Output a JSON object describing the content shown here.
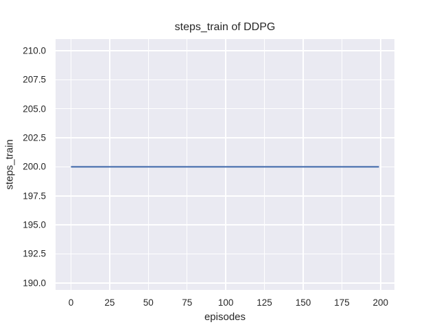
{
  "figure": {
    "background": "#ffffff"
  },
  "chart_data": {
    "type": "line",
    "title": "steps_train of DDPG",
    "xlabel": "episodes",
    "ylabel": "steps_train",
    "x_ticks": {
      "values": [
        0,
        25,
        50,
        75,
        100,
        125,
        150,
        175,
        200
      ],
      "labels": [
        "0",
        "25",
        "50",
        "75",
        "100",
        "125",
        "150",
        "175",
        "200"
      ]
    },
    "y_ticks": {
      "values": [
        190,
        192.5,
        195,
        197.5,
        200,
        202.5,
        205,
        207.5,
        210
      ],
      "labels": [
        "190.0",
        "192.5",
        "195.0",
        "197.5",
        "200.0",
        "202.5",
        "205.0",
        "207.5",
        "210.0"
      ]
    },
    "xlim": [
      -9.95,
      208.95
    ],
    "ylim": [
      189.4,
      211.0
    ],
    "grid": true,
    "legend_position": "none",
    "plot_background": "#eaeaf2",
    "grid_color": "#ffffff",
    "text_color": "#262626",
    "series": [
      {
        "name": "steps_train",
        "color": "#4c72b0",
        "linewidth": 2.2,
        "x": [
          0,
          199
        ],
        "y": [
          200,
          200
        ],
        "description": "constant line: steps_train = 200 for every episode from 0 to 199"
      }
    ]
  }
}
